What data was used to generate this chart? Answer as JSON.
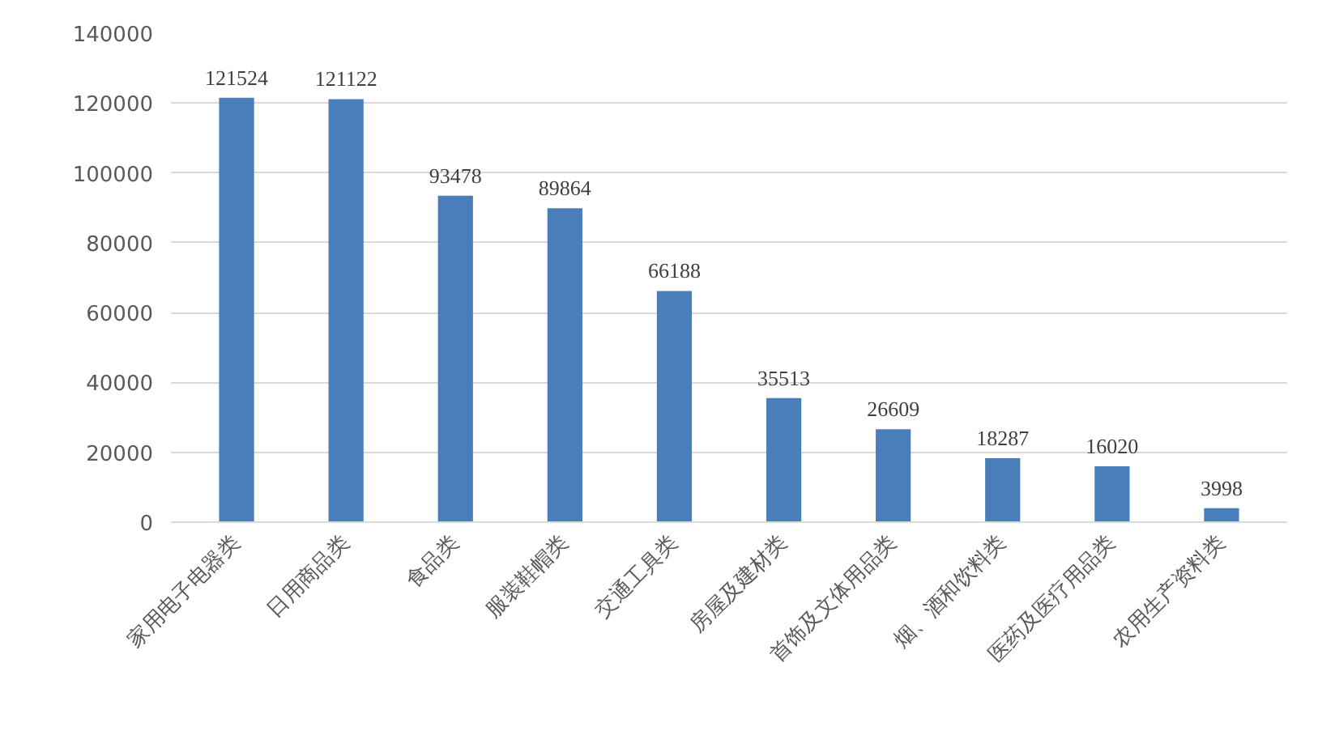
{
  "chart_data": {
    "type": "bar",
    "categories": [
      "家用电子电器类",
      "日用商品类",
      "食品类",
      "服装鞋帽类",
      "交通工具类",
      "房屋及建材类",
      "首饰及文体用品类",
      "烟、酒和饮料类",
      "医药及医疗用品类",
      "农用生产资料类"
    ],
    "values": [
      121524,
      121122,
      93478,
      89864,
      66188,
      35513,
      26609,
      18287,
      16020,
      3998
    ],
    "color": "#4a7ebb",
    "ylim": [
      0,
      140000
    ],
    "yticks": [
      0,
      20000,
      40000,
      60000,
      80000,
      100000,
      120000,
      140000
    ],
    "grid": "y",
    "data_labels": true
  }
}
